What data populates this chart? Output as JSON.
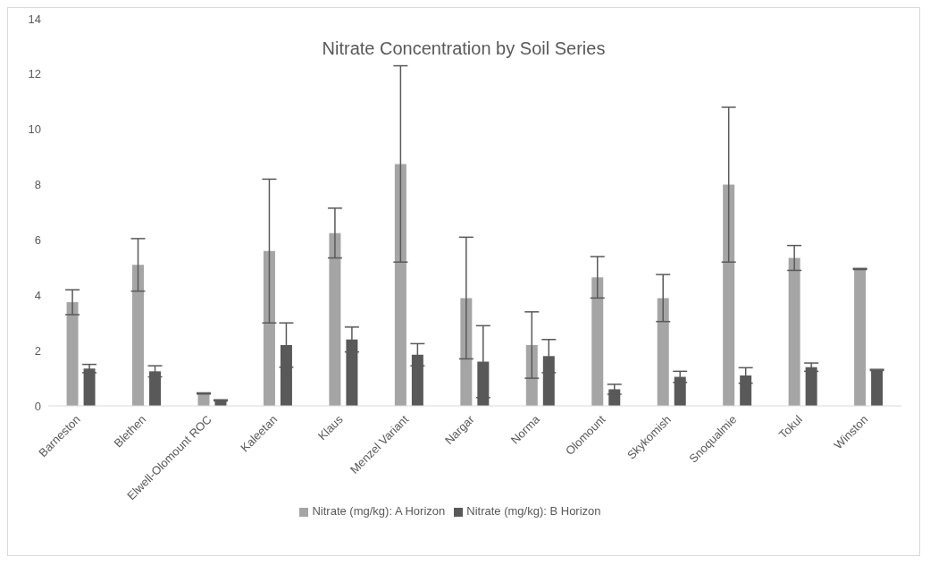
{
  "chart_data": {
    "type": "bar",
    "title": "Nitrate Concentration by Soil Series",
    "categories": [
      "Barneston",
      "Blethen",
      "Elwell-Olomount ROC",
      "Kaleetan",
      "Klaus",
      "Menzel Variant",
      "Nargar",
      "Norma",
      "Olomount",
      "Skykomish",
      "Snoqualmie",
      "Tokul",
      "Winston"
    ],
    "series": [
      {
        "name": "Nitrate (mg/kg): A Horizon",
        "color": "#a5a5a5",
        "values": [
          3.75,
          5.1,
          0.45,
          5.6,
          6.25,
          8.75,
          3.9,
          2.2,
          4.65,
          3.9,
          8.0,
          5.35,
          4.95
        ],
        "errors": [
          0.45,
          0.95,
          0.02,
          2.6,
          0.9,
          3.55,
          2.2,
          1.2,
          0.75,
          0.85,
          2.8,
          0.45,
          0.02
        ]
      },
      {
        "name": "Nitrate (mg/kg): B Horizon",
        "color": "#595959",
        "values": [
          1.35,
          1.25,
          0.2,
          2.2,
          2.4,
          1.85,
          1.6,
          1.8,
          0.6,
          1.05,
          1.1,
          1.4,
          1.3
        ],
        "errors": [
          0.15,
          0.2,
          0.02,
          0.8,
          0.45,
          0.4,
          1.3,
          0.6,
          0.18,
          0.2,
          0.28,
          0.15,
          0.02
        ]
      }
    ],
    "ylim": [
      0,
      14
    ],
    "yticks": [
      0,
      2,
      4,
      6,
      8,
      10,
      12,
      14
    ],
    "grid": false,
    "legend": "bottom"
  }
}
